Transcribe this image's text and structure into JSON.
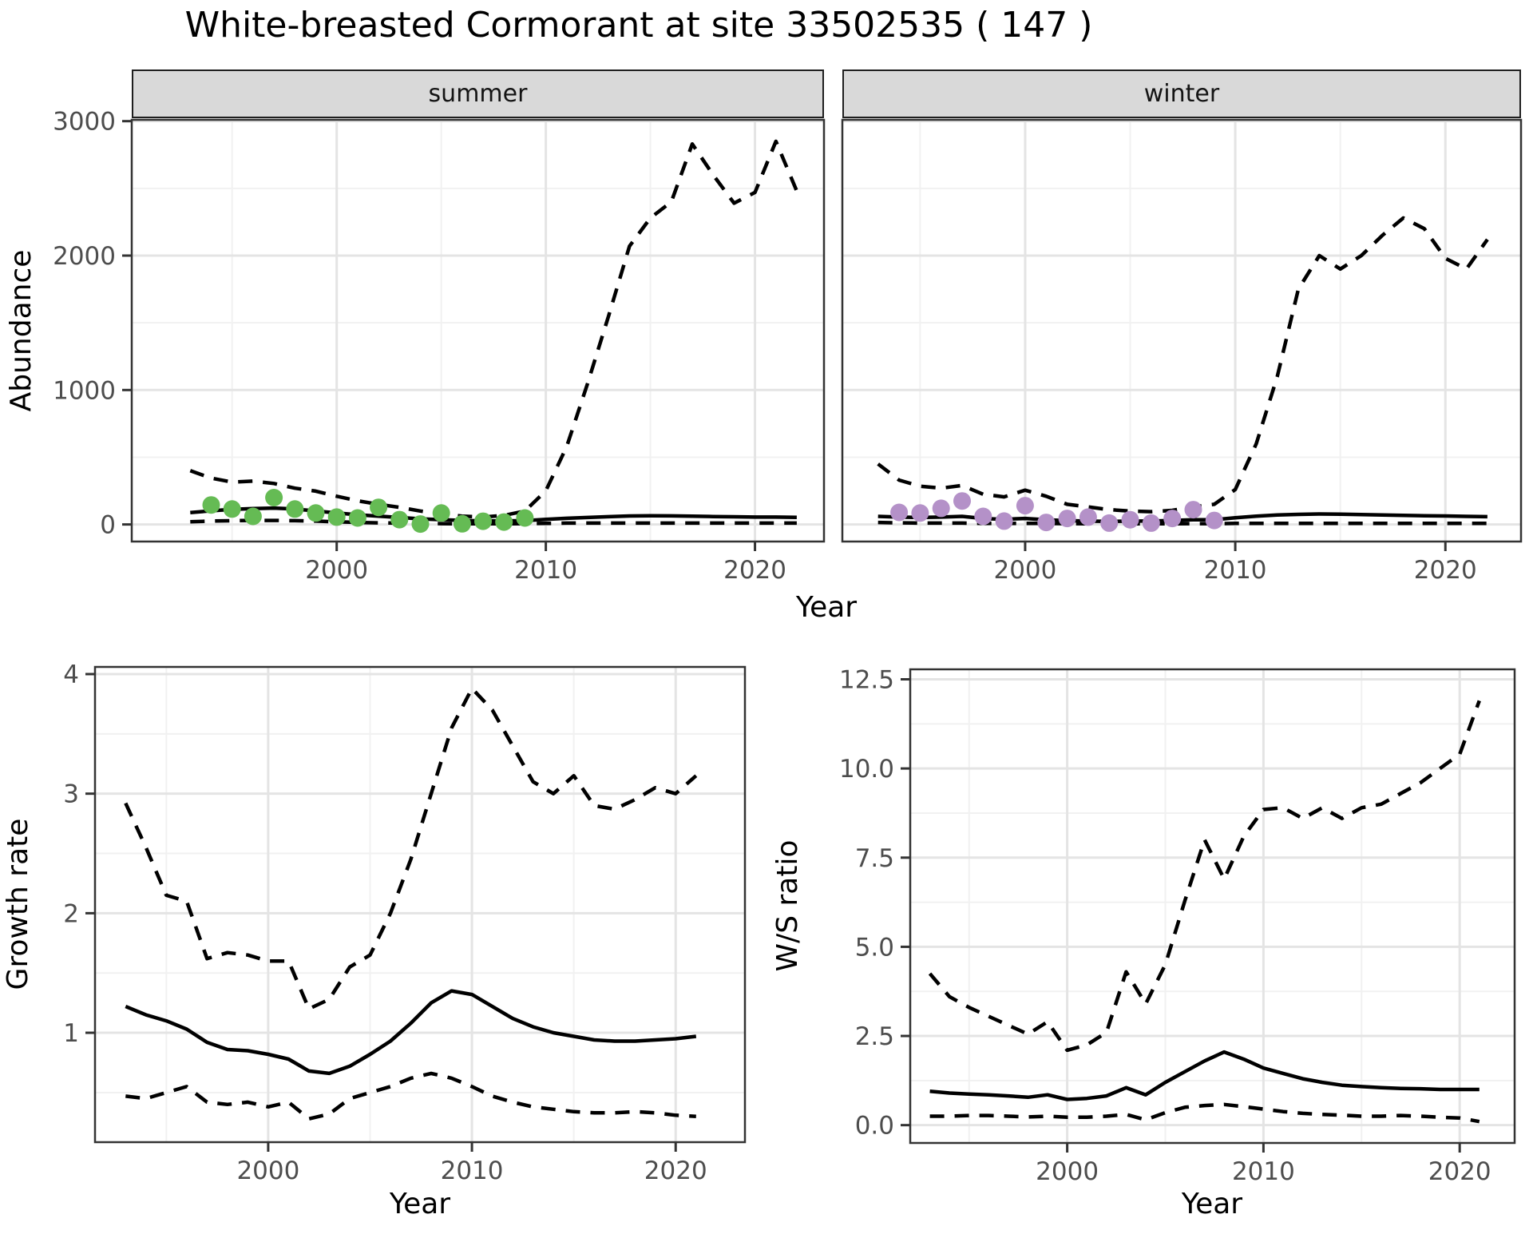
{
  "title": "White-breasted Cormorant at site 33502535 ( 147 )",
  "facets": [
    {
      "label": "summer"
    },
    {
      "label": "winter"
    }
  ],
  "axes": {
    "abundance_label": "Abundance",
    "growth_label": "Growth rate",
    "ws_label": "W/S ratio",
    "top_x_label": "Year",
    "bottom_left_x_label": "Year",
    "bottom_right_x_label": "Year"
  },
  "colors": {
    "summer_points": "#65bb54",
    "winter_points": "#b491c8",
    "line": "#000000",
    "panel_border": "#333333",
    "grid_major": "#e4e4e4",
    "grid_minor": "#f1f1f1",
    "axis_text": "#4d4d4d",
    "strip_bg": "#d9d9d9"
  },
  "chart_data": [
    {
      "name": "abundance-summer",
      "type": "line",
      "title": "summer",
      "xlabel": "Year",
      "ylabel": "Abundance",
      "xlim": [
        1990.2,
        2023.3
      ],
      "ylim": [
        -127,
        3010
      ],
      "x_ticks": [
        2000,
        2010,
        2020
      ],
      "x_tick_labels": [
        "2000",
        "2010",
        "2020"
      ],
      "x_minor": [
        1995,
        2005,
        2015
      ],
      "y_ticks": [
        0,
        1000,
        2000,
        3000
      ],
      "y_tick_labels": [
        "0",
        "1000",
        "2000",
        "3000"
      ],
      "y_minor": [
        500,
        1500,
        2500
      ],
      "grid": true,
      "legend": "none",
      "series": [
        {
          "name": "upper-ci",
          "style": "dashed",
          "x": [
            1993,
            1994,
            1995,
            1996,
            1997,
            1998,
            1999,
            2000,
            2001,
            2002,
            2003,
            2004,
            2005,
            2006,
            2007,
            2008,
            2009,
            2010,
            2011,
            2012,
            2013,
            2014,
            2015,
            2016,
            2017,
            2018,
            2019,
            2020,
            2021,
            2022
          ],
          "y": [
            400,
            345,
            315,
            322,
            305,
            270,
            248,
            210,
            176,
            150,
            127,
            100,
            79,
            62,
            55,
            67,
            100,
            250,
            580,
            1050,
            1550,
            2070,
            2280,
            2400,
            2830,
            2600,
            2390,
            2470,
            2850,
            2480
          ]
        },
        {
          "name": "lower-ci",
          "style": "dashed",
          "x": [
            1993,
            1994,
            1995,
            1996,
            1997,
            1998,
            1999,
            2000,
            2001,
            2002,
            2003,
            2004,
            2005,
            2006,
            2007,
            2008,
            2009,
            2010,
            2011,
            2012,
            2013,
            2014,
            2015,
            2016,
            2017,
            2018,
            2019,
            2020,
            2021,
            2022
          ],
          "y": [
            20,
            25,
            28,
            30,
            30,
            28,
            25,
            20,
            15,
            12,
            10,
            8,
            6,
            5,
            5,
            5,
            6,
            8,
            10,
            10,
            10,
            10,
            10,
            10,
            10,
            10,
            10,
            10,
            10,
            10
          ]
        },
        {
          "name": "median",
          "style": "solid",
          "x": [
            1993,
            1994,
            1995,
            1996,
            1997,
            1998,
            1999,
            2000,
            2001,
            2002,
            2003,
            2004,
            2005,
            2006,
            2007,
            2008,
            2009,
            2010,
            2011,
            2012,
            2013,
            2014,
            2015,
            2016,
            2017,
            2018,
            2019,
            2020,
            2021,
            2022
          ],
          "y": [
            88,
            102,
            112,
            118,
            122,
            115,
            100,
            85,
            72,
            62,
            52,
            42,
            36,
            30,
            27,
            26,
            28,
            38,
            46,
            52,
            58,
            63,
            65,
            64,
            62,
            59,
            57,
            55,
            55,
            53
          ]
        },
        {
          "name": "observed-points",
          "style": "points",
          "color": "#65bb54",
          "x": [
            1994,
            1995,
            1996,
            1997,
            1998,
            1999,
            2000,
            2001,
            2002,
            2003,
            2004,
            2005,
            2006,
            2007,
            2008,
            2009
          ],
          "y": [
            145,
            115,
            60,
            200,
            115,
            85,
            55,
            48,
            127,
            36,
            3,
            85,
            5,
            24,
            18,
            48
          ]
        }
      ]
    },
    {
      "name": "abundance-winter",
      "type": "line",
      "title": "winter",
      "xlabel": "Year",
      "ylabel": "Abundance",
      "xlim": [
        1991.3,
        2023.6
      ],
      "ylim": [
        -127,
        3010
      ],
      "x_ticks": [
        2000,
        2010,
        2020
      ],
      "x_tick_labels": [
        "2000",
        "2010",
        "2020"
      ],
      "x_minor": [
        1995,
        2005,
        2015
      ],
      "y_ticks": [
        0,
        1000,
        2000,
        3000
      ],
      "y_tick_labels": [
        "0",
        "1000",
        "2000",
        "3000"
      ],
      "y_minor": [
        500,
        1500,
        2500
      ],
      "grid": true,
      "legend": "none",
      "y_axis_labels_shown": false,
      "series": [
        {
          "name": "upper-ci",
          "style": "dashed",
          "x": [
            1993,
            1994,
            1995,
            1996,
            1997,
            1998,
            1999,
            2000,
            2001,
            2002,
            2003,
            2004,
            2005,
            2006,
            2007,
            2008,
            2009,
            2010,
            2011,
            2012,
            2013,
            2014,
            2015,
            2016,
            2017,
            2018,
            2019,
            2020,
            2021,
            2022
          ],
          "y": [
            450,
            330,
            285,
            270,
            290,
            225,
            205,
            255,
            210,
            150,
            130,
            110,
            100,
            95,
            105,
            130,
            150,
            260,
            600,
            1100,
            1750,
            2000,
            1900,
            2000,
            2150,
            2280,
            2200,
            1980,
            1900,
            2120
          ]
        },
        {
          "name": "lower-ci",
          "style": "dashed",
          "x": [
            1993,
            1994,
            1995,
            1996,
            1997,
            1998,
            1999,
            2000,
            2001,
            2002,
            2003,
            2004,
            2005,
            2006,
            2007,
            2008,
            2009,
            2010,
            2011,
            2012,
            2013,
            2014,
            2015,
            2016,
            2017,
            2018,
            2019,
            2020,
            2021,
            2022
          ],
          "y": [
            15,
            12,
            10,
            10,
            10,
            8,
            8,
            8,
            8,
            6,
            5,
            5,
            5,
            5,
            5,
            6,
            6,
            8,
            8,
            8,
            8,
            8,
            8,
            8,
            8,
            8,
            8,
            8,
            8,
            8
          ]
        },
        {
          "name": "median",
          "style": "solid",
          "x": [
            1993,
            1994,
            1995,
            1996,
            1997,
            1998,
            1999,
            2000,
            2001,
            2002,
            2003,
            2004,
            2005,
            2006,
            2007,
            2008,
            2009,
            2010,
            2011,
            2012,
            2013,
            2014,
            2015,
            2016,
            2017,
            2018,
            2019,
            2020,
            2021,
            2022
          ],
          "y": [
            60,
            55,
            52,
            55,
            60,
            45,
            38,
            45,
            35,
            28,
            25,
            22,
            25,
            25,
            30,
            35,
            35,
            50,
            62,
            70,
            75,
            78,
            76,
            73,
            70,
            68,
            65,
            63,
            60,
            58
          ]
        },
        {
          "name": "observed-points",
          "style": "points",
          "color": "#b491c8",
          "x": [
            1994,
            1995,
            1996,
            1997,
            1998,
            1999,
            2000,
            2001,
            2002,
            2003,
            2004,
            2005,
            2006,
            2007,
            2008,
            2009
          ],
          "y": [
            90,
            85,
            120,
            175,
            60,
            25,
            140,
            15,
            45,
            55,
            10,
            35,
            10,
            45,
            110,
            30
          ]
        }
      ]
    },
    {
      "name": "growth-rate",
      "type": "line",
      "title": "",
      "xlabel": "Year",
      "ylabel": "Growth rate",
      "xlim": [
        1991.5,
        2023.4
      ],
      "ylim": [
        0.085,
        4.06
      ],
      "x_ticks": [
        2000,
        2010,
        2020
      ],
      "x_tick_labels": [
        "2000",
        "2010",
        "2020"
      ],
      "x_minor": [
        1995,
        2005,
        2015
      ],
      "y_ticks": [
        1,
        2,
        3,
        4
      ],
      "y_tick_labels": [
        "1",
        "2",
        "3",
        "4"
      ],
      "y_minor": [
        0.5,
        1.5,
        2.5,
        3.5
      ],
      "grid": true,
      "legend": "none",
      "series": [
        {
          "name": "upper-ci",
          "style": "dashed",
          "x": [
            1993,
            1994,
            1995,
            1996,
            1997,
            1998,
            1999,
            2000,
            2001,
            2002,
            2003,
            2004,
            2005,
            2006,
            2007,
            2008,
            2009,
            2010,
            2011,
            2012,
            2013,
            2014,
            2015,
            2016,
            2017,
            2018,
            2019,
            2020,
            2021
          ],
          "y": [
            2.92,
            2.55,
            2.15,
            2.1,
            1.62,
            1.67,
            1.65,
            1.6,
            1.6,
            1.2,
            1.28,
            1.55,
            1.65,
            2.0,
            2.45,
            3.0,
            3.55,
            3.88,
            3.7,
            3.4,
            3.1,
            3.0,
            3.15,
            2.9,
            2.87,
            2.95,
            3.05,
            3.0,
            3.15
          ]
        },
        {
          "name": "lower-ci",
          "style": "dashed",
          "x": [
            1993,
            1994,
            1995,
            1996,
            1997,
            1998,
            1999,
            2000,
            2001,
            2002,
            2003,
            2004,
            2005,
            2006,
            2007,
            2008,
            2009,
            2010,
            2011,
            2012,
            2013,
            2014,
            2015,
            2016,
            2017,
            2018,
            2019,
            2020,
            2021
          ],
          "y": [
            0.47,
            0.45,
            0.5,
            0.55,
            0.42,
            0.4,
            0.42,
            0.38,
            0.42,
            0.28,
            0.32,
            0.45,
            0.5,
            0.55,
            0.62,
            0.66,
            0.62,
            0.55,
            0.47,
            0.42,
            0.38,
            0.36,
            0.34,
            0.33,
            0.33,
            0.34,
            0.33,
            0.31,
            0.3
          ]
        },
        {
          "name": "median",
          "style": "solid",
          "x": [
            1993,
            1994,
            1995,
            1996,
            1997,
            1998,
            1999,
            2000,
            2001,
            2002,
            2003,
            2004,
            2005,
            2006,
            2007,
            2008,
            2009,
            2010,
            2011,
            2012,
            2013,
            2014,
            2015,
            2016,
            2017,
            2018,
            2019,
            2020,
            2021
          ],
          "y": [
            1.22,
            1.15,
            1.1,
            1.03,
            0.92,
            0.86,
            0.85,
            0.82,
            0.78,
            0.68,
            0.66,
            0.72,
            0.82,
            0.93,
            1.08,
            1.25,
            1.35,
            1.32,
            1.22,
            1.12,
            1.05,
            1.0,
            0.97,
            0.94,
            0.93,
            0.93,
            0.94,
            0.95,
            0.97
          ]
        }
      ]
    },
    {
      "name": "ws-ratio",
      "type": "line",
      "title": "",
      "xlabel": "Year",
      "ylabel": "W/S ratio",
      "xlim": [
        1992.0,
        2022.8
      ],
      "ylim": [
        -0.5,
        12.78
      ],
      "x_ticks": [
        2000,
        2010,
        2020
      ],
      "x_tick_labels": [
        "2000",
        "2010",
        "2020"
      ],
      "x_minor": [
        1995,
        2005,
        2015
      ],
      "y_ticks": [
        0,
        2.5,
        5,
        7.5,
        10,
        12.5
      ],
      "y_tick_labels": [
        "0.0",
        "2.5",
        "5.0",
        "7.5",
        "10.0",
        "12.5"
      ],
      "y_minor": [
        1.25,
        3.75,
        6.25,
        8.75,
        11.25
      ],
      "grid": true,
      "legend": "none",
      "series": [
        {
          "name": "upper-ci",
          "style": "dashed",
          "x": [
            1993,
            1994,
            1995,
            1996,
            1997,
            1998,
            1999,
            2000,
            2001,
            2002,
            2003,
            2004,
            2005,
            2006,
            2007,
            2008,
            2009,
            2010,
            2011,
            2012,
            2013,
            2014,
            2015,
            2016,
            2017,
            2018,
            2019,
            2020,
            2021
          ],
          "y": [
            4.25,
            3.6,
            3.3,
            3.05,
            2.8,
            2.55,
            2.9,
            2.1,
            2.25,
            2.6,
            4.3,
            3.4,
            4.5,
            6.3,
            8.0,
            6.9,
            8.1,
            8.85,
            8.9,
            8.6,
            8.9,
            8.6,
            8.9,
            9.0,
            9.3,
            9.6,
            10.0,
            10.4,
            11.9
          ]
        },
        {
          "name": "lower-ci",
          "style": "dashed",
          "x": [
            1993,
            1994,
            1995,
            1996,
            1997,
            1998,
            1999,
            2000,
            2001,
            2002,
            2003,
            2004,
            2005,
            2006,
            2007,
            2008,
            2009,
            2010,
            2011,
            2012,
            2013,
            2014,
            2015,
            2016,
            2017,
            2018,
            2019,
            2020,
            2021
          ],
          "y": [
            0.25,
            0.25,
            0.27,
            0.27,
            0.25,
            0.23,
            0.25,
            0.22,
            0.22,
            0.25,
            0.3,
            0.15,
            0.35,
            0.5,
            0.55,
            0.58,
            0.52,
            0.45,
            0.38,
            0.33,
            0.3,
            0.28,
            0.25,
            0.25,
            0.27,
            0.25,
            0.22,
            0.2,
            0.1
          ]
        },
        {
          "name": "median",
          "style": "solid",
          "x": [
            1993,
            1994,
            1995,
            1996,
            1997,
            1998,
            1999,
            2000,
            2001,
            2002,
            2003,
            2004,
            2005,
            2006,
            2007,
            2008,
            2009,
            2010,
            2011,
            2012,
            2013,
            2014,
            2015,
            2016,
            2017,
            2018,
            2019,
            2020,
            2021
          ],
          "y": [
            0.95,
            0.9,
            0.87,
            0.85,
            0.82,
            0.78,
            0.85,
            0.72,
            0.75,
            0.82,
            1.05,
            0.85,
            1.2,
            1.5,
            1.8,
            2.05,
            1.85,
            1.6,
            1.45,
            1.3,
            1.2,
            1.12,
            1.08,
            1.05,
            1.03,
            1.02,
            1.0,
            1.0,
            1.0
          ]
        }
      ]
    }
  ]
}
